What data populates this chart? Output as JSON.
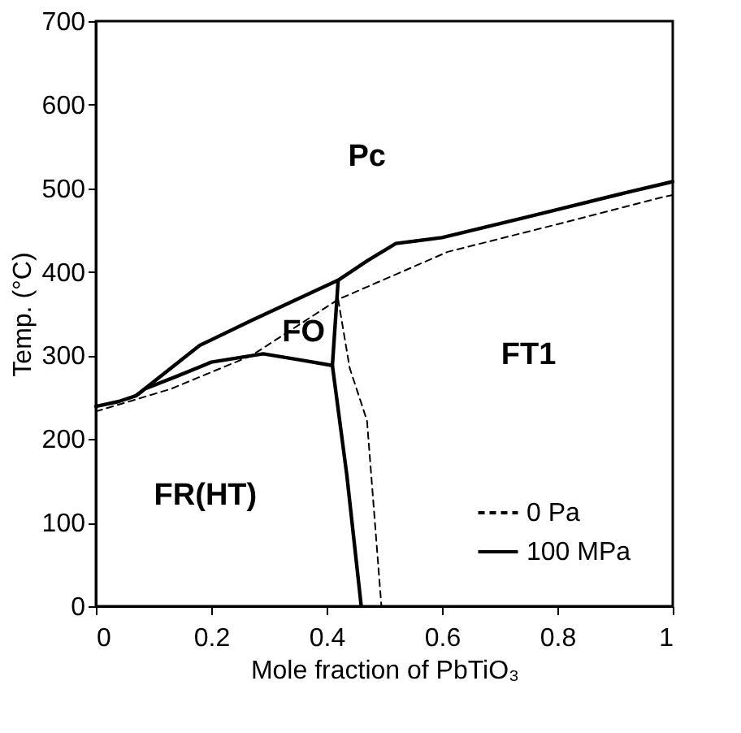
{
  "chart_data": {
    "type": "line",
    "xlabel": "Mole fraction of PbTiO₃",
    "ylabel": "Temp. (°C)",
    "xlim": [
      0,
      1
    ],
    "xticks": [
      0,
      0.2,
      0.4,
      0.6,
      0.8,
      1
    ],
    "ylim": [
      0,
      700
    ],
    "yticks": [
      0,
      100,
      200,
      300,
      400,
      500,
      600,
      700
    ],
    "grid": false,
    "legend": "bottom right",
    "series": [
      {
        "name": "0 Pa",
        "color": "#000000",
        "line_style": "dashed",
        "x": [
          0,
          0.13,
          0.27,
          0.42,
          0.61,
          0.8,
          0.98,
          1
        ],
        "values": [
          233,
          260,
          300,
          367,
          424,
          457,
          489,
          492
        ]
      },
      {
        "color": "#000000",
        "line_style": "dashed",
        "x": [
          0.42,
          0.44,
          0.47,
          0.495
        ],
        "values": [
          367,
          285,
          222,
          0
        ]
      },
      {
        "name": "100 MPa",
        "color": "#000000",
        "line_style": "solid",
        "x": [
          0,
          0.04,
          0.07,
          0.18,
          0.27,
          0.42,
          0.47,
          0.52,
          0.6,
          0.75,
          0.92,
          1
        ],
        "values": [
          239,
          245,
          252,
          312,
          342,
          390,
          413,
          434,
          441,
          466,
          495,
          508
        ]
      },
      {
        "color": "#000000",
        "line_style": "solid",
        "x": [
          0.07,
          0.085,
          0.14,
          0.2,
          0.29,
          0.36,
          0.41
        ],
        "values": [
          252,
          260,
          275,
          292,
          302,
          294,
          288
        ]
      },
      {
        "color": "#000000",
        "line_style": "solid",
        "x": [
          0.42,
          0.41,
          0.435,
          0.46
        ],
        "values": [
          390,
          288,
          157,
          0
        ]
      }
    ],
    "annotations": [
      "Pc",
      "FO",
      "FT1",
      "FR(HT)"
    ]
  }
}
